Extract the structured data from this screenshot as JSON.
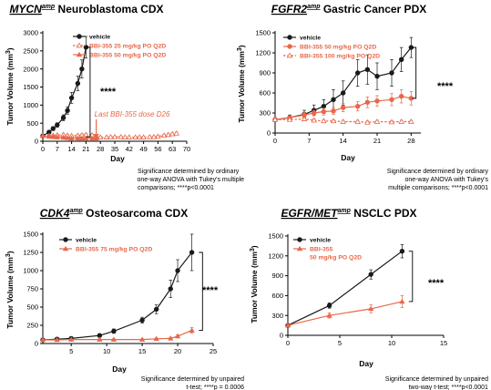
{
  "colors": {
    "vehicle": "#1a1a1a",
    "treatment": "#e8674a",
    "axis": "#000000"
  },
  "chart_data": [
    {
      "type": "line",
      "title_gene": "MYCN",
      "title_sup": "amp",
      "title_rest": " Neuroblastoma CDX",
      "xlabel": "Day",
      "ylabel": "Tumor Volume (mm",
      "ylabel_unit_sup": "3",
      "ylabel_close": ")",
      "xlim": [
        0,
        70
      ],
      "ylim": [
        0,
        3000
      ],
      "xticks": [
        0,
        7,
        14,
        21,
        28,
        35,
        42,
        49,
        56,
        63,
        70
      ],
      "xtick_labels": [
        "0",
        "7",
        "14",
        "21",
        "28",
        "35",
        "42",
        "49",
        "56",
        "63",
        "70"
      ],
      "yticks": [
        0,
        500,
        1000,
        1500,
        2000,
        2500,
        3000
      ],
      "ytick_labels": [
        "0",
        "500",
        "1000",
        "1500",
        "2000",
        "2500",
        "3000"
      ],
      "legend_position": "top-right",
      "series": [
        {
          "name": "vehicle",
          "role": "vehicle",
          "marker": "circle",
          "x": [
            0,
            3,
            5,
            7,
            10,
            12,
            14,
            17,
            19,
            21
          ],
          "y": [
            150,
            250,
            350,
            450,
            650,
            850,
            1200,
            1600,
            2000,
            2600
          ],
          "err": [
            20,
            40,
            50,
            60,
            80,
            100,
            150,
            200,
            250,
            300
          ]
        },
        {
          "name": "BBI-355 25 mg/kg PO Q2D",
          "role": "treatment",
          "marker": "open-triangle",
          "dashed": true,
          "x": [
            0,
            3,
            5,
            7,
            10,
            12,
            14,
            17,
            19,
            21,
            24,
            26,
            28,
            31,
            33,
            35,
            38,
            40,
            42,
            45,
            47,
            49,
            52,
            54,
            56,
            59,
            61,
            63,
            65
          ],
          "y": [
            150,
            150,
            160,
            170,
            180,
            160,
            150,
            160,
            170,
            180,
            170,
            120,
            110,
            110,
            120,
            120,
            120,
            110,
            110,
            110,
            110,
            110,
            120,
            120,
            130,
            160,
            180,
            200,
            220
          ],
          "err": [
            0,
            20,
            25,
            25,
            30,
            30,
            25,
            25,
            30,
            30,
            30,
            20,
            20,
            20,
            20,
            20,
            20,
            20,
            20,
            20,
            20,
            20,
            20,
            25,
            25,
            30,
            30,
            30,
            30
          ]
        },
        {
          "name": "BBI-355 50 mg/kg PO Q2D",
          "role": "treatment",
          "marker": "triangle",
          "x": [
            0,
            3,
            5,
            7,
            10,
            12,
            14,
            17,
            19,
            21,
            24,
            26
          ],
          "y": [
            150,
            130,
            120,
            110,
            100,
            90,
            80,
            80,
            80,
            80,
            80,
            80
          ],
          "err": [
            0,
            20,
            20,
            20,
            20,
            20,
            20,
            20,
            20,
            20,
            20,
            20
          ]
        }
      ],
      "significance": "****",
      "bracket_x": 23,
      "bracket_y": [
        2600,
        120
      ],
      "annotation_text": "Last BBI-355 dose D26",
      "annotation_day": 26,
      "note_lines": [
        "Significance determined by ordinary",
        "one-way ANOVA with Tukey's multiple",
        "comparisons; ****p<0.0001"
      ]
    },
    {
      "type": "line",
      "title_gene": "FGFR2",
      "title_sup": "amp",
      "title_rest": " Gastric Cancer PDX",
      "xlabel": "Day",
      "ylabel": "Tumor Volume (mm",
      "ylabel_unit_sup": "3",
      "ylabel_close": ")",
      "xlim": [
        0,
        30
      ],
      "ylim": [
        0,
        1500
      ],
      "xticks": [
        0,
        7,
        14,
        21,
        28
      ],
      "xtick_labels": [
        "0",
        "7",
        "14",
        "21",
        "28"
      ],
      "yticks": [
        0,
        300,
        600,
        900,
        1200,
        1500
      ],
      "ytick_labels": [
        "0",
        "300",
        "600",
        "900",
        "1200",
        "1500"
      ],
      "legend_position": "top-left",
      "series": [
        {
          "name": "vehicle",
          "role": "vehicle",
          "marker": "circle",
          "x": [
            0,
            3,
            6,
            8,
            10,
            12,
            14,
            17,
            19,
            21,
            24,
            26,
            28
          ],
          "y": [
            200,
            230,
            280,
            340,
            400,
            500,
            600,
            900,
            950,
            850,
            900,
            1100,
            1280
          ],
          "err": [
            30,
            40,
            60,
            80,
            100,
            150,
            180,
            200,
            220,
            200,
            200,
            180,
            150
          ]
        },
        {
          "name": "BBI-355 50 mg/kg PO Q2D",
          "role": "treatment",
          "marker": "circle",
          "x": [
            0,
            3,
            6,
            8,
            10,
            12,
            14,
            17,
            19,
            21,
            24,
            26,
            28
          ],
          "y": [
            200,
            230,
            270,
            300,
            320,
            330,
            380,
            400,
            460,
            480,
            500,
            550,
            520
          ],
          "err": [
            30,
            30,
            40,
            40,
            50,
            50,
            60,
            70,
            80,
            80,
            90,
            100,
            100
          ]
        },
        {
          "name": "BBI-355 100 mg/kg PO Q2D",
          "role": "treatment",
          "marker": "open-triangle",
          "dashed": true,
          "x": [
            0,
            3,
            6,
            8,
            10,
            12,
            14,
            17,
            19,
            21,
            24,
            26,
            28
          ],
          "y": [
            200,
            200,
            210,
            190,
            180,
            180,
            170,
            170,
            160,
            170,
            165,
            170,
            170
          ],
          "err": [
            20,
            20,
            25,
            25,
            20,
            20,
            20,
            20,
            20,
            20,
            20,
            20,
            20
          ]
        }
      ],
      "significance": "****",
      "bracket_x": 29,
      "bracket_y": [
        1280,
        520
      ],
      "note_lines": [
        "Significance determined by ordinary",
        "one-way ANOVA with Tukey's",
        "multiple comparisons; ****p<0.0001"
      ]
    },
    {
      "type": "line",
      "title_gene": "CDK4",
      "title_sup": "amp",
      "title_rest": " Osteosarcoma CDX",
      "xlabel": "Day",
      "ylabel": "Tumor Volume (mm",
      "ylabel_unit_sup": "3",
      "ylabel_close": ")",
      "xlim": [
        1,
        25
      ],
      "ylim": [
        0,
        1500
      ],
      "xticks": [
        5,
        10,
        15,
        20,
        25
      ],
      "xtick_labels": [
        "5",
        "10",
        "15",
        "20",
        "25"
      ],
      "yticks": [
        0,
        250,
        500,
        750,
        1000,
        1250,
        1500
      ],
      "ytick_labels": [
        "0",
        "250",
        "500",
        "750",
        "1000",
        "1250",
        "1500"
      ],
      "legend_position": "top-left",
      "series": [
        {
          "name": "vehicle",
          "role": "vehicle",
          "marker": "circle",
          "x": [
            1,
            3,
            5,
            9,
            11,
            15,
            17,
            19,
            20,
            22
          ],
          "y": [
            50,
            60,
            70,
            110,
            170,
            320,
            470,
            750,
            1000,
            1250
          ],
          "err": [
            10,
            10,
            15,
            20,
            30,
            40,
            60,
            120,
            150,
            250
          ]
        },
        {
          "name": "BBI-355 75 mg/kg PO Q2D",
          "role": "treatment",
          "marker": "triangle",
          "x": [
            1,
            3,
            5,
            9,
            11,
            15,
            17,
            19,
            20,
            22
          ],
          "y": [
            50,
            50,
            55,
            55,
            55,
            55,
            65,
            70,
            100,
            180
          ],
          "err": [
            10,
            10,
            10,
            10,
            10,
            10,
            10,
            15,
            20,
            40
          ]
        }
      ],
      "significance": "****",
      "bracket_x": 23.5,
      "bracket_y": [
        1250,
        180
      ],
      "note_lines": [
        "Significance determined by unpaired",
        "t-test; ****p = 0.0006"
      ]
    },
    {
      "type": "line",
      "title_gene": "EGFR/MET",
      "title_sup": "amp",
      "title_rest": " NSCLC PDX",
      "xlabel": "Day",
      "ylabel": "Tumor Volume (mm",
      "ylabel_unit_sup": "3",
      "ylabel_close": ")",
      "xlim": [
        0,
        15
      ],
      "ylim": [
        0,
        1500
      ],
      "xticks": [
        0,
        5,
        10,
        15
      ],
      "xtick_labels": [
        "0",
        "5",
        "10",
        "15"
      ],
      "yticks": [
        0,
        300,
        600,
        900,
        1200,
        1500
      ],
      "ytick_labels": [
        "0",
        "300",
        "600",
        "900",
        "1200",
        "1500"
      ],
      "legend_position": "top-left",
      "series": [
        {
          "name": "vehicle",
          "role": "vehicle",
          "marker": "circle",
          "x": [
            0,
            4,
            8,
            11
          ],
          "y": [
            150,
            450,
            920,
            1270
          ],
          "err": [
            20,
            40,
            70,
            100
          ]
        },
        {
          "name": "BBI-355\n50 mg/kg PO Q2D",
          "role": "treatment",
          "marker": "triangle",
          "x": [
            0,
            4,
            8,
            11
          ],
          "y": [
            150,
            300,
            400,
            510
          ],
          "err": [
            20,
            40,
            60,
            90
          ]
        }
      ],
      "significance": "****",
      "bracket_x": 12,
      "bracket_y": [
        1270,
        510
      ],
      "note_lines": [
        "Significance determined by unpaired",
        "two-way t-test; ****p<0.0001"
      ]
    }
  ]
}
